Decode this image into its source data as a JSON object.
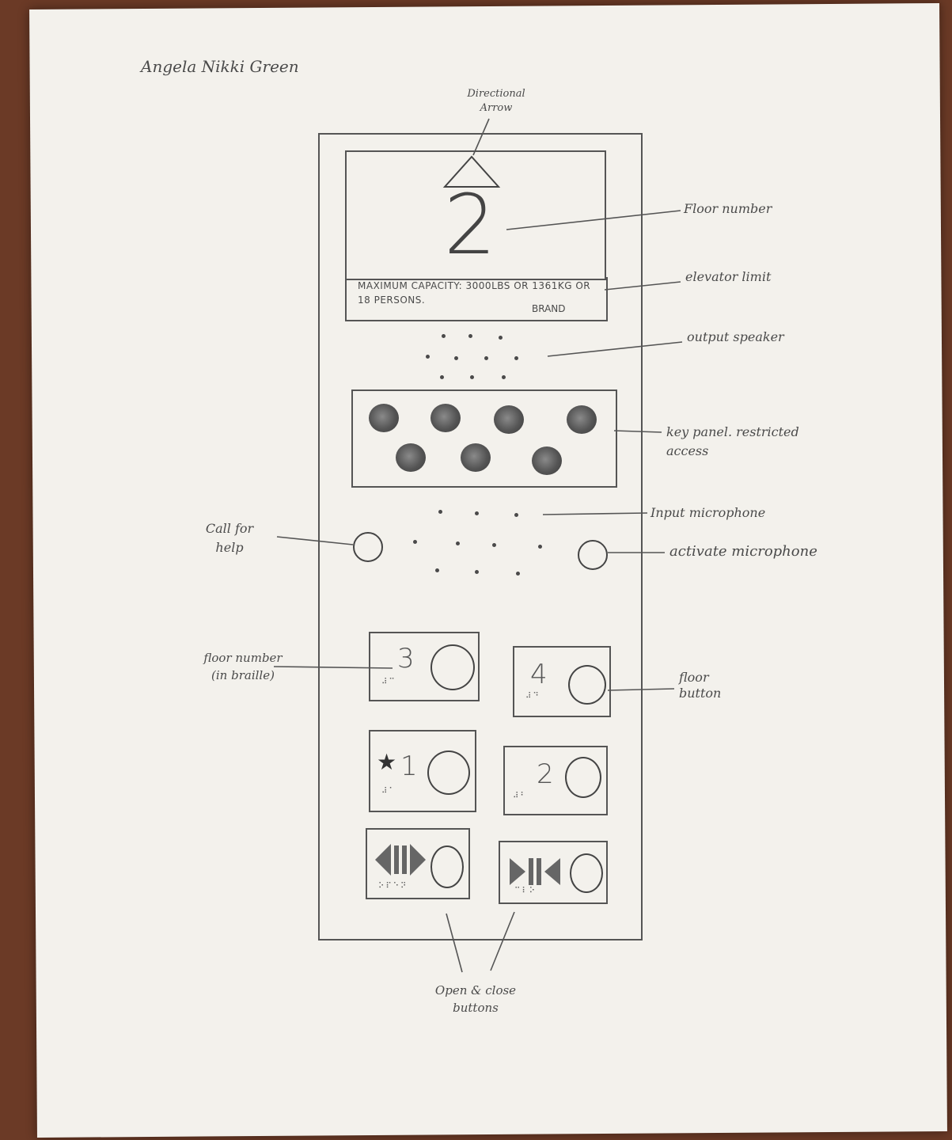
{
  "author": "Angela Nikki Green",
  "display": {
    "floor_number": "2",
    "capacity_text": "Maximum capacity: 3000lbs or 1361kg or 18 persons.",
    "brand": "BRAND"
  },
  "floor_buttons": [
    {
      "label": "3",
      "braille": "⠼⠉"
    },
    {
      "label": "4",
      "braille": "⠼⠙"
    },
    {
      "label": "1",
      "star": "★",
      "braille": "⠼⠁"
    },
    {
      "label": "2",
      "braille": "⠼⠃"
    }
  ],
  "door_buttons": [
    {
      "braille": "⠕⠏⠑⠝"
    },
    {
      "braille": "⠉⠇⠕"
    }
  ],
  "annotations": {
    "directional_arrow": "Directional Arrow",
    "floor_number": "Floor number",
    "elevator_limit": "elevator limit",
    "output_speaker": "output speaker",
    "key_panel": "key panel. restricted access",
    "input_microphone": "Input microphone",
    "call_for_help": "Call for help",
    "activate_microphone": "activate microphone",
    "floor_number_braille": "floor number (in braille)",
    "floor_button": "floor button",
    "open_close_buttons": "Open & close buttons"
  }
}
